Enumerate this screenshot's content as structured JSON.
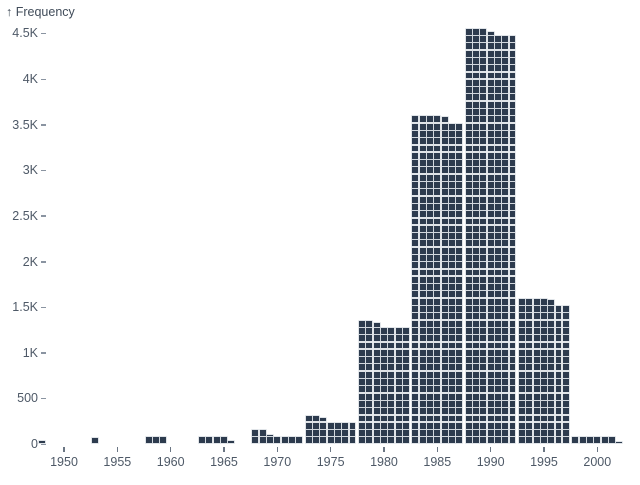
{
  "chart_data": {
    "type": "bar",
    "style": "waffle-histogram",
    "title": "",
    "ylabel": "Frequency",
    "ylabel_display": "↑ Frequency",
    "xlabel": "",
    "categories": [
      1950,
      1955,
      1960,
      1965,
      1970,
      1975,
      1980,
      1985,
      1990,
      1995,
      2000
    ],
    "values": [
      5,
      10,
      35,
      50,
      105,
      270,
      1310,
      3575,
      4520,
      1575,
      70
    ],
    "bin_width_years": 5,
    "ylim": [
      0,
      4600
    ],
    "xlim": [
      1947,
      2003
    ],
    "grid": false,
    "legend": false,
    "yticks": [
      {
        "value": 0,
        "label": "0"
      },
      {
        "value": 500,
        "label": "500"
      },
      {
        "value": 1000,
        "label": "1K"
      },
      {
        "value": 1500,
        "label": "1.5K"
      },
      {
        "value": 2000,
        "label": "2K"
      },
      {
        "value": 2500,
        "label": "2.5K"
      },
      {
        "value": 3000,
        "label": "3K"
      },
      {
        "value": 3500,
        "label": "3.5K"
      },
      {
        "value": 4000,
        "label": "4K"
      },
      {
        "value": 4500,
        "label": "4.5K"
      }
    ],
    "xticks": [
      "1950",
      "1955",
      "1960",
      "1965",
      "1970",
      "1975",
      "1980",
      "1985",
      "1990",
      "1995",
      "2000"
    ],
    "waffle": {
      "cells_per_row": 7,
      "units_per_row": 80,
      "units_per_cell": 11.43
    },
    "colors": {
      "cell": "#2d3b4e",
      "cell_outline": "#d3d8de",
      "axis_text": "#4e5967",
      "title_text": "#414c5a",
      "tick_mark": "#6b7684",
      "background": "#ffffff"
    }
  }
}
